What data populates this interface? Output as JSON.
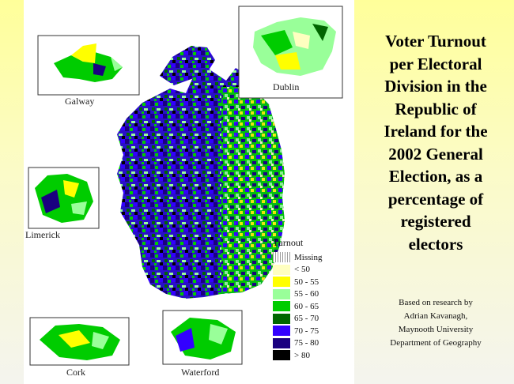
{
  "title": "Voter Turnout\nper Electoral\nDivision in the\nRepublic of\nIreland for the\n2002 General\nElection, as a\npercentage of\nregistered\nelectors",
  "credit": "Based on research by\nAdrian Kavanagh,\nMaynooth University\nDepartment of Geography",
  "insets": {
    "galway": "Galway",
    "dublin": "Dublin",
    "limerick": "Limerick",
    "cork": "Cork",
    "waterford": "Waterford"
  },
  "legend": {
    "title": "Turnout",
    "items": [
      {
        "label": "Missing",
        "color": "#ffffff",
        "pattern": "hatched"
      },
      {
        "label": "< 50",
        "color": "#ffffc0"
      },
      {
        "label": "50 - 55",
        "color": "#ffff00"
      },
      {
        "label": "55 - 60",
        "color": "#99ff99"
      },
      {
        "label": "60 - 65",
        "color": "#00cc00"
      },
      {
        "label": "65 - 70",
        "color": "#006600"
      },
      {
        "label": "70 - 75",
        "color": "#3300ff"
      },
      {
        "label": "75 - 80",
        "color": "#1a0080"
      },
      {
        "label": "> 80",
        "color": "#000000"
      }
    ]
  },
  "colors": {
    "background_top": "#ffff9a",
    "background_bottom": "#f4f4ee",
    "map_panel": "#ffffff"
  }
}
